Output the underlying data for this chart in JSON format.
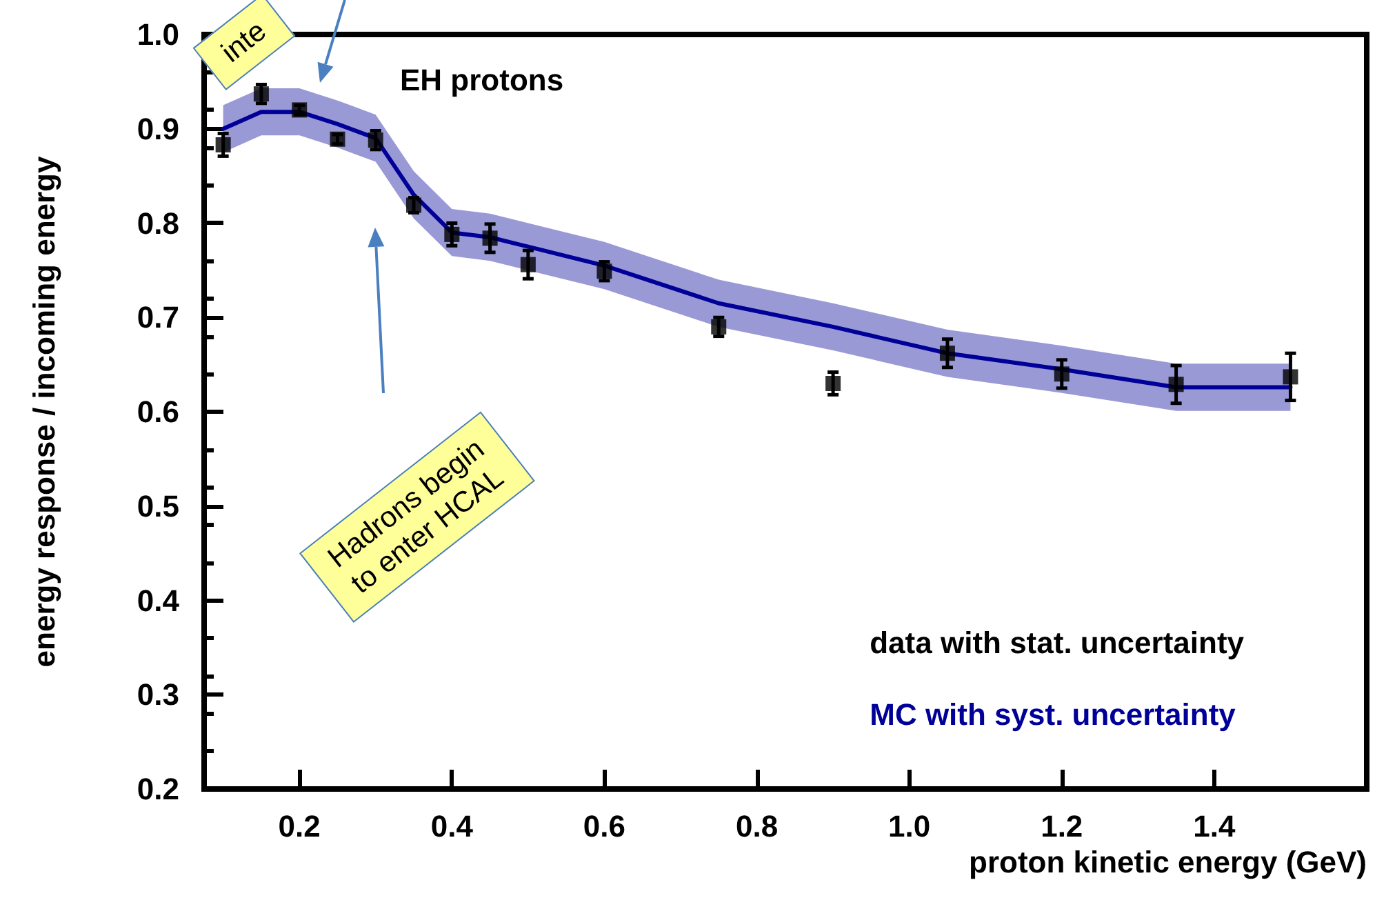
{
  "chart_data": {
    "type": "scatter",
    "title": "EH protons",
    "xlabel": "proton kinetic energy (GeV)",
    "ylabel": "energy response / incoming energy",
    "xlim": [
      0.075,
      1.6
    ],
    "xticks": [
      0.2,
      0.4,
      0.6,
      0.8,
      {
        "value": 1,
        "label": "1.0"
      },
      1.2,
      1.4
    ],
    "ylim": [
      0.2,
      1.0
    ],
    "yticks": [
      0.2,
      0.3,
      0.4,
      0.5,
      0.6,
      0.7,
      0.8,
      0.9,
      {
        "value": 1,
        "label": "1.0"
      }
    ],
    "grid": false,
    "legend": "bottom right",
    "annotations": [
      "Hadrons begin\nto enter HCAL",
      "inte"
    ],
    "series": [
      {
        "name": "data with stat. uncertainty",
        "color": "#000000",
        "marker": "square",
        "x": [
          0.1,
          0.15,
          0.2,
          0.25,
          0.3,
          0.35,
          0.4,
          0.45,
          0.5,
          0.6,
          0.75,
          0.9,
          1.05,
          1.2,
          1.35,
          1.5
        ],
        "values": [
          0.883,
          0.937,
          0.92,
          0.889,
          0.888,
          0.819,
          0.788,
          0.784,
          0.756,
          0.749,
          0.69,
          0.63,
          0.662,
          0.64,
          0.629,
          0.637
        ],
        "errors": [
          0.012,
          0.01,
          0.005,
          0.005,
          0.01,
          0.008,
          0.012,
          0.015,
          0.015,
          0.01,
          0.01,
          0.012,
          0.015,
          0.015,
          0.02,
          0.025
        ]
      },
      {
        "name": "MC with syst. uncertainty",
        "type": "line",
        "color": "#000099",
        "marker": "none",
        "line_style": "solid",
        "x": [
          0.1,
          0.15,
          0.2,
          0.25,
          0.3,
          0.35,
          0.4,
          0.45,
          0.5,
          0.6,
          0.75,
          0.9,
          1.05,
          1.2,
          1.35,
          1.5
        ],
        "values": [
          0.9,
          0.918,
          0.918,
          0.905,
          0.89,
          0.83,
          0.79,
          0.785,
          0.775,
          0.755,
          0.715,
          0.69,
          0.662,
          0.645,
          0.626,
          0.626
        ],
        "lower": [
          0.875,
          0.893,
          0.893,
          0.88,
          0.865,
          0.805,
          0.765,
          0.76,
          0.75,
          0.73,
          0.69,
          0.665,
          0.637,
          0.62,
          0.601,
          0.601
        ],
        "upper": [
          0.925,
          0.943,
          0.943,
          0.93,
          0.915,
          0.855,
          0.815,
          0.81,
          0.8,
          0.78,
          0.74,
          0.715,
          0.687,
          0.67,
          0.651,
          0.651
        ]
      }
    ]
  }
}
